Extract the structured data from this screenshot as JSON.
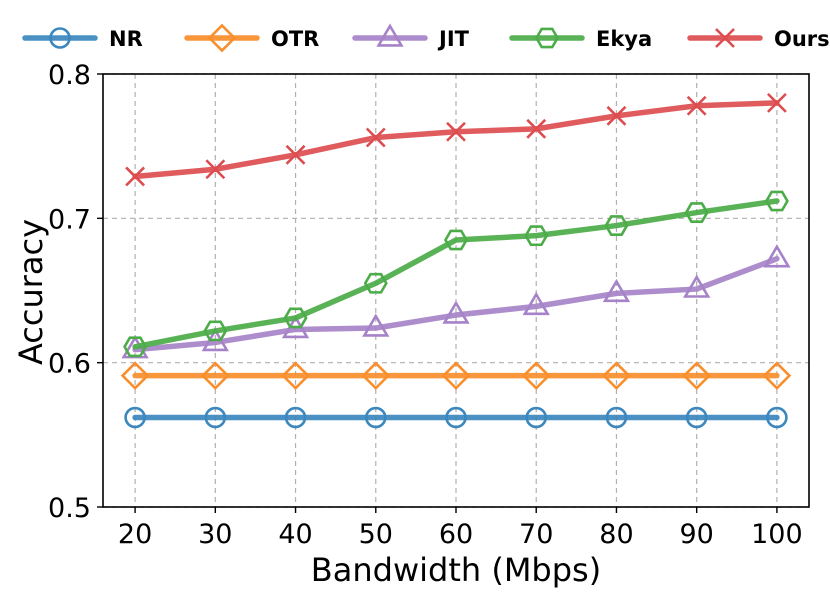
{
  "chart_data": {
    "type": "line",
    "title": "",
    "xlabel": "Bandwidth (Mbps)",
    "ylabel": "Accuracy",
    "x": [
      20,
      30,
      40,
      50,
      60,
      70,
      80,
      90,
      100
    ],
    "xticks": [
      "20",
      "30",
      "40",
      "50",
      "60",
      "70",
      "80",
      "90",
      "100"
    ],
    "xlim": [
      16,
      104
    ],
    "yticks": [
      "0.5",
      "0.6",
      "0.7",
      "0.8"
    ],
    "ytick_values": [
      0.5,
      0.6,
      0.7,
      0.8
    ],
    "ylim": [
      0.5,
      0.8
    ],
    "grid": true,
    "legend_position": "top",
    "series": [
      {
        "name": "NR",
        "color": "#3b87be",
        "marker": "circle",
        "values": [
          0.562,
          0.562,
          0.562,
          0.562,
          0.562,
          0.562,
          0.562,
          0.562,
          0.562
        ]
      },
      {
        "name": "OTR",
        "color": "#f98e2c",
        "marker": "diamond",
        "values": [
          0.591,
          0.591,
          0.591,
          0.591,
          0.591,
          0.591,
          0.591,
          0.591,
          0.591
        ]
      },
      {
        "name": "JIT",
        "color": "#a683c8",
        "marker": "triangle",
        "values": [
          0.609,
          0.614,
          0.623,
          0.624,
          0.633,
          0.639,
          0.648,
          0.651,
          0.672
        ]
      },
      {
        "name": "Ekya",
        "color": "#4bac48",
        "marker": "hexagon",
        "values": [
          0.611,
          0.622,
          0.631,
          0.655,
          0.685,
          0.688,
          0.695,
          0.704,
          0.712
        ]
      },
      {
        "name": "Ours",
        "color": "#dd4d4f",
        "marker": "x",
        "values": [
          0.729,
          0.734,
          0.744,
          0.756,
          0.76,
          0.762,
          0.771,
          0.778,
          0.78
        ]
      }
    ]
  }
}
